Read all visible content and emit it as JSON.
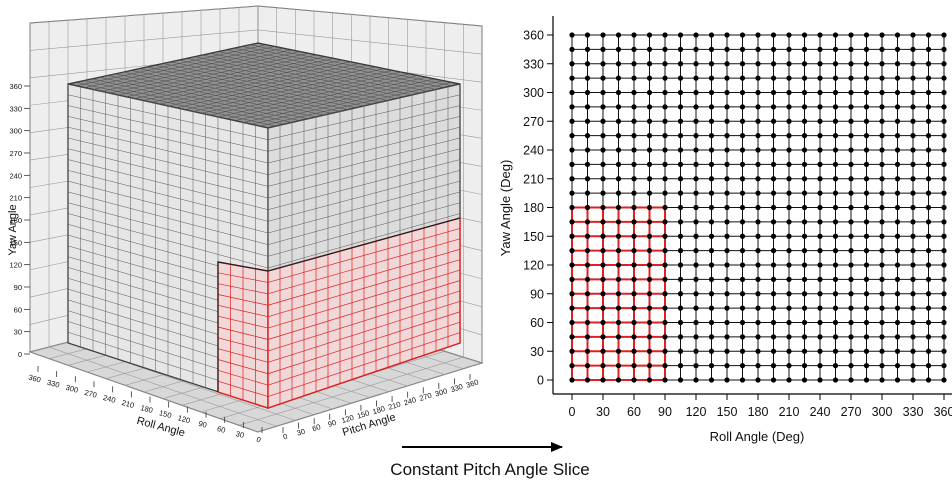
{
  "cube": {
    "yaw_axis_label": "Yaw Angle",
    "roll_axis_label": "Roll Angle",
    "pitch_axis_label": "Pitch Angle",
    "yaw_ticks": [
      "0",
      "30",
      "60",
      "90",
      "120",
      "150",
      "180",
      "210",
      "240",
      "270",
      "300",
      "330",
      "360"
    ],
    "roll_ticks": [
      "360",
      "330",
      "300",
      "270",
      "240",
      "210",
      "180",
      "150",
      "120",
      "90",
      "60",
      "30",
      "0"
    ],
    "pitch_ticks": [
      "0",
      "30",
      "60",
      "90",
      "120",
      "150",
      "180",
      "210",
      "240",
      "270",
      "300",
      "330",
      "360"
    ],
    "highlight_color": "#e02020",
    "grid_color": "#333333"
  },
  "slice": {
    "xlabel": "Roll Angle (Deg)",
    "ylabel": "Yaw Angle (Deg)",
    "x_ticks": [
      "0",
      "30",
      "60",
      "90",
      "120",
      "150",
      "180",
      "210",
      "240",
      "270",
      "300",
      "330",
      "360"
    ],
    "y_ticks": [
      "0",
      "30",
      "60",
      "90",
      "120",
      "150",
      "180",
      "210",
      "240",
      "270",
      "300",
      "330",
      "360"
    ],
    "highlight_color": "#e02020",
    "point_color": "#000000"
  },
  "arrow": {
    "caption": "Constant Pitch Angle Slice"
  },
  "chart_data": {
    "type": "scatter",
    "xlabel": "Roll Angle (Deg)",
    "ylabel": "Yaw Angle (Deg)",
    "xlim": [
      0,
      360
    ],
    "ylim": [
      0,
      360
    ],
    "grid_step": 15,
    "highlight_region": {
      "x": [
        0,
        90
      ],
      "y": [
        0,
        180
      ]
    }
  }
}
